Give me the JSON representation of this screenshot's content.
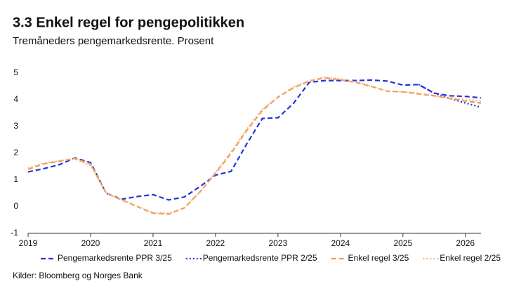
{
  "chart_data": {
    "type": "line",
    "title": "3.3 Enkel regel for pengepolitikken",
    "subtitle": "Tremåneders pengemarkedsrente. Prosent",
    "source": "Kilder: Bloomberg og Norges Bank",
    "x": [
      2019,
      2019.25,
      2019.5,
      2019.75,
      2020,
      2020.25,
      2020.5,
      2020.75,
      2021,
      2021.25,
      2021.5,
      2021.75,
      2022,
      2022.25,
      2022.5,
      2022.75,
      2023,
      2023.25,
      2023.5,
      2023.75,
      2024,
      2024.25,
      2024.5,
      2024.75,
      2025,
      2025.25,
      2025.5,
      2025.75,
      2026,
      2026.25
    ],
    "series": [
      {
        "name": "Pengemarkedsrente PPR 3/25",
        "color": "#2233dd",
        "dash": "dashed",
        "values": [
          1.3,
          1.42,
          1.57,
          1.82,
          1.65,
          0.5,
          0.28,
          0.38,
          0.45,
          0.25,
          0.36,
          0.75,
          1.18,
          1.32,
          2.35,
          3.3,
          3.33,
          3.87,
          4.65,
          4.72,
          4.72,
          4.72,
          4.74,
          4.7,
          4.55,
          4.57,
          4.25,
          4.15,
          4.13,
          4.07
        ]
      },
      {
        "name": "Pengemarkedsrente PPR 2/25",
        "color": "#2233dd",
        "dash": "dotted",
        "values": [
          null,
          null,
          null,
          null,
          null,
          null,
          null,
          null,
          null,
          null,
          null,
          null,
          null,
          null,
          null,
          null,
          null,
          null,
          null,
          null,
          null,
          null,
          null,
          null,
          null,
          4.57,
          4.25,
          4.05,
          3.88,
          3.72
        ]
      },
      {
        "name": "Enkel regel 3/25",
        "color": "#ef9a55",
        "dash": "dashed",
        "values": [
          1.4,
          1.6,
          1.7,
          1.8,
          1.6,
          0.5,
          0.25,
          0.0,
          -0.25,
          -0.28,
          -0.05,
          0.55,
          1.25,
          2.0,
          2.85,
          3.6,
          4.1,
          4.45,
          4.7,
          4.82,
          4.75,
          4.65,
          4.5,
          4.32,
          4.3,
          4.22,
          4.15,
          4.05,
          3.95,
          3.88
        ]
      },
      {
        "name": "Enkel regel 2/25",
        "color": "#f5b47c",
        "dash": "dotted",
        "values": [
          1.45,
          1.62,
          1.72,
          1.78,
          1.55,
          0.5,
          0.27,
          0.0,
          -0.22,
          -0.25,
          -0.05,
          0.55,
          1.28,
          2.05,
          2.9,
          3.65,
          4.1,
          4.48,
          4.72,
          4.85,
          4.78,
          4.68,
          4.5,
          4.32,
          4.3,
          4.25,
          4.15,
          4.08,
          4.02,
          3.95
        ]
      }
    ],
    "xlim": [
      2019,
      2026.25
    ],
    "xticks": [
      2019,
      2020,
      2021,
      2022,
      2023,
      2024,
      2025,
      2026
    ],
    "ylim": [
      -1,
      5
    ],
    "yticks": [
      -1,
      0,
      1,
      2,
      3,
      4,
      5
    ],
    "legend": "bottom"
  }
}
